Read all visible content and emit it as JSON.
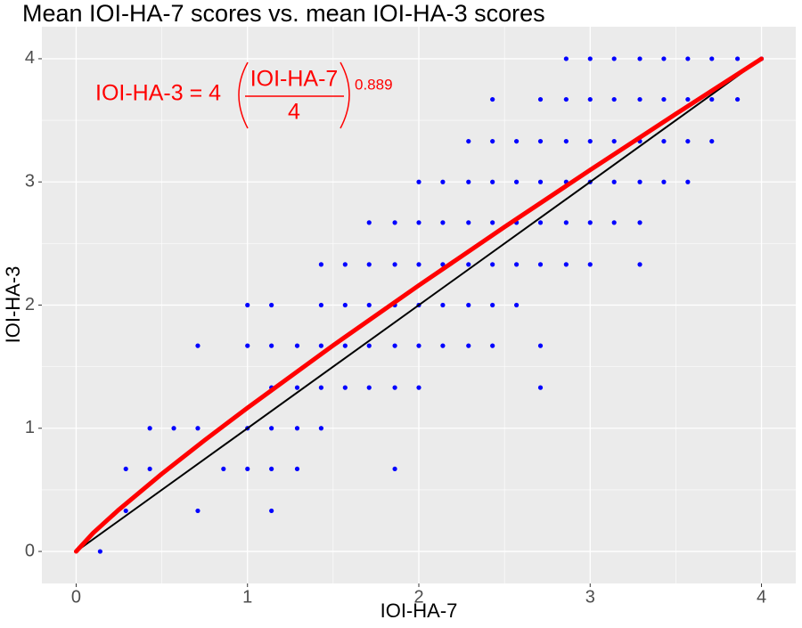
{
  "chart_data": {
    "type": "scatter",
    "title": "Mean IOI-HA-7 scores vs. mean IOI-HA-3 scores",
    "x_label": "IOI-HA-7",
    "y_label": "IOI-HA-3",
    "annotation": {
      "lhs": "IOI-HA-3 = 4",
      "numerator": "IOI-HA-7",
      "denominator": "4",
      "exponent": "0.889",
      "color": "#ff0000"
    },
    "xlim": [
      -0.2,
      4.2
    ],
    "ylim": [
      -0.26,
      4.26
    ],
    "xticks": [
      0,
      1,
      2,
      3,
      4
    ],
    "yticks": [
      0,
      1,
      2,
      3,
      4
    ],
    "xminorticks": [
      0.5,
      1.5,
      2.5,
      3.5
    ],
    "yminorticks": [
      0.5,
      1.5,
      2.5,
      3.5
    ],
    "grid": true,
    "series": [
      {
        "type": "scatter",
        "color": "#0000ff",
        "x": [
          2.86,
          3.0,
          3.14,
          3.29,
          3.43,
          3.57,
          3.71,
          3.86,
          4.0,
          2.43,
          2.71,
          2.86,
          3.0,
          3.14,
          3.29,
          3.43,
          3.57,
          3.71,
          3.86,
          2.29,
          2.43,
          2.57,
          2.71,
          2.86,
          3.0,
          3.14,
          3.29,
          3.43,
          3.57,
          3.71,
          2.0,
          2.14,
          2.29,
          2.43,
          2.57,
          2.71,
          2.86,
          3.0,
          3.14,
          3.29,
          3.43,
          3.57,
          1.71,
          1.86,
          2.0,
          2.14,
          2.29,
          2.43,
          2.57,
          2.71,
          2.86,
          3.0,
          3.14,
          3.29,
          1.43,
          1.57,
          1.71,
          1.86,
          2.0,
          2.14,
          2.29,
          2.43,
          2.57,
          2.71,
          2.86,
          3.0,
          3.29,
          1.0,
          1.14,
          1.43,
          1.57,
          1.71,
          1.86,
          2.0,
          2.14,
          2.29,
          2.43,
          2.57,
          0.71,
          1.0,
          1.14,
          1.29,
          1.43,
          1.57,
          1.71,
          1.86,
          2.0,
          2.14,
          2.29,
          2.43,
          2.71,
          1.14,
          1.29,
          1.43,
          1.57,
          1.71,
          1.86,
          2.0,
          2.71,
          0.43,
          0.57,
          0.71,
          1.0,
          1.14,
          1.29,
          1.43,
          0.29,
          0.43,
          0.86,
          1.0,
          1.14,
          1.29,
          1.86,
          0.29,
          0.71,
          1.14,
          0.14
        ],
        "values": [
          4,
          4,
          4,
          4,
          4,
          4,
          4,
          4,
          4,
          3.67,
          3.67,
          3.67,
          3.67,
          3.67,
          3.67,
          3.67,
          3.67,
          3.67,
          3.67,
          3.33,
          3.33,
          3.33,
          3.33,
          3.33,
          3.33,
          3.33,
          3.33,
          3.33,
          3.33,
          3.33,
          3,
          3,
          3,
          3,
          3,
          3,
          3,
          3,
          3,
          3,
          3,
          3,
          2.67,
          2.67,
          2.67,
          2.67,
          2.67,
          2.67,
          2.67,
          2.67,
          2.67,
          2.67,
          2.67,
          2.67,
          2.33,
          2.33,
          2.33,
          2.33,
          2.33,
          2.33,
          2.33,
          2.33,
          2.33,
          2.33,
          2.33,
          2.33,
          2.33,
          2,
          2,
          2,
          2,
          2,
          2,
          2,
          2,
          2,
          2,
          2,
          1.67,
          1.67,
          1.67,
          1.67,
          1.67,
          1.67,
          1.67,
          1.67,
          1.67,
          1.67,
          1.67,
          1.67,
          1.67,
          1.33,
          1.33,
          1.33,
          1.33,
          1.33,
          1.33,
          1.33,
          1.33,
          1,
          1,
          1,
          1,
          1,
          1,
          1,
          0.67,
          0.67,
          0.67,
          0.67,
          0.67,
          0.67,
          0.67,
          0.33,
          0.33,
          0.33,
          0
        ]
      },
      {
        "type": "line",
        "color": "#000000",
        "x": [
          0,
          4
        ],
        "values": [
          0,
          4
        ]
      },
      {
        "type": "line",
        "color": "#ff0000",
        "x": [
          0,
          0.1,
          0.25,
          0.5,
          0.75,
          1,
          1.5,
          2,
          2.5,
          3,
          3.5,
          4
        ],
        "values": [
          0,
          0.151,
          0.34,
          0.63,
          0.903,
          1.166,
          1.673,
          2.16,
          2.634,
          3.097,
          3.552,
          4
        ]
      }
    ]
  }
}
